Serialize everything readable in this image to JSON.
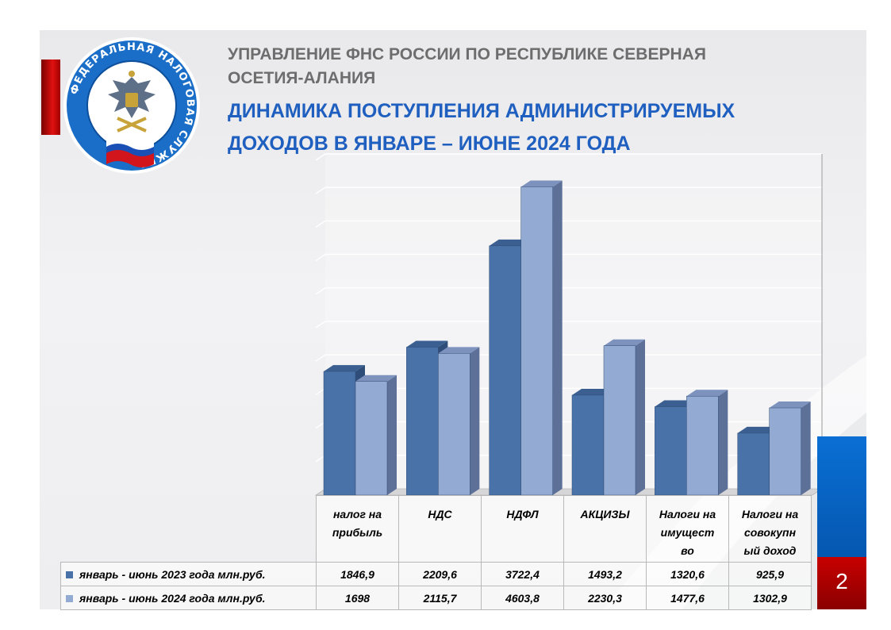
{
  "header": {
    "org_line1": "УПРАВЛЕНИЕ ФНС РОССИИ ПО РЕСПУБЛИКЕ СЕВЕРНАЯ",
    "org_line2": "ОСЕТИЯ-АЛАНИЯ",
    "title_line1": "ДИНАМИКА ПОСТУПЛЕНИЯ АДМИНИСТРИРУЕМЫХ",
    "title_line2": "ДОХОДОВ  В  ЯНВАРЕ – ИЮНЕ 2024 ГОДА"
  },
  "logo": {
    "text": "ФЕДЕРАЛЬНАЯ НАЛОГОВАЯ СЛУЖБА",
    "icon": "fns-emblem-icon"
  },
  "page_number": "2",
  "colors": {
    "series_2023": "#4872a8",
    "series_2024": "#93aad2",
    "title": "#1f5fbf",
    "accent_red": "#c80000",
    "accent_blue": "#0a6fd4"
  },
  "chart_data": {
    "type": "bar",
    "categories": [
      "налог на прибыль",
      "НДС",
      "НДФЛ",
      "АКЦИЗЫ",
      "Налоги на имущество",
      "Налоги на совокупный доход"
    ],
    "category_lines": [
      [
        "налог на",
        "прибыль"
      ],
      [
        "НДС"
      ],
      [
        "НДФЛ"
      ],
      [
        "АКЦИЗЫ"
      ],
      [
        "Налоги на",
        "имущест",
        "во"
      ],
      [
        "Налоги на",
        "совокупн",
        "ый доход"
      ]
    ],
    "series": [
      {
        "name": "январь - июнь 2023 года млн.руб.",
        "values": [
          1846.9,
          2209.6,
          3722.4,
          1493.2,
          1320.6,
          925.9
        ],
        "labels": [
          "1846,9",
          "2209,6",
          "3722,4",
          "1493,2",
          "1320,6",
          "925,9"
        ]
      },
      {
        "name": "январь - июнь 2024 года млн.руб.",
        "values": [
          1698,
          2115.7,
          4603.8,
          2230.3,
          1477.6,
          1302.9
        ],
        "labels": [
          "1698",
          "2115,7",
          "4603,8",
          "2230,3",
          "1477,6",
          "1302,9"
        ]
      }
    ],
    "ylim": [
      0,
      5000
    ],
    "grid": true,
    "legend": "data-table-bottom"
  }
}
